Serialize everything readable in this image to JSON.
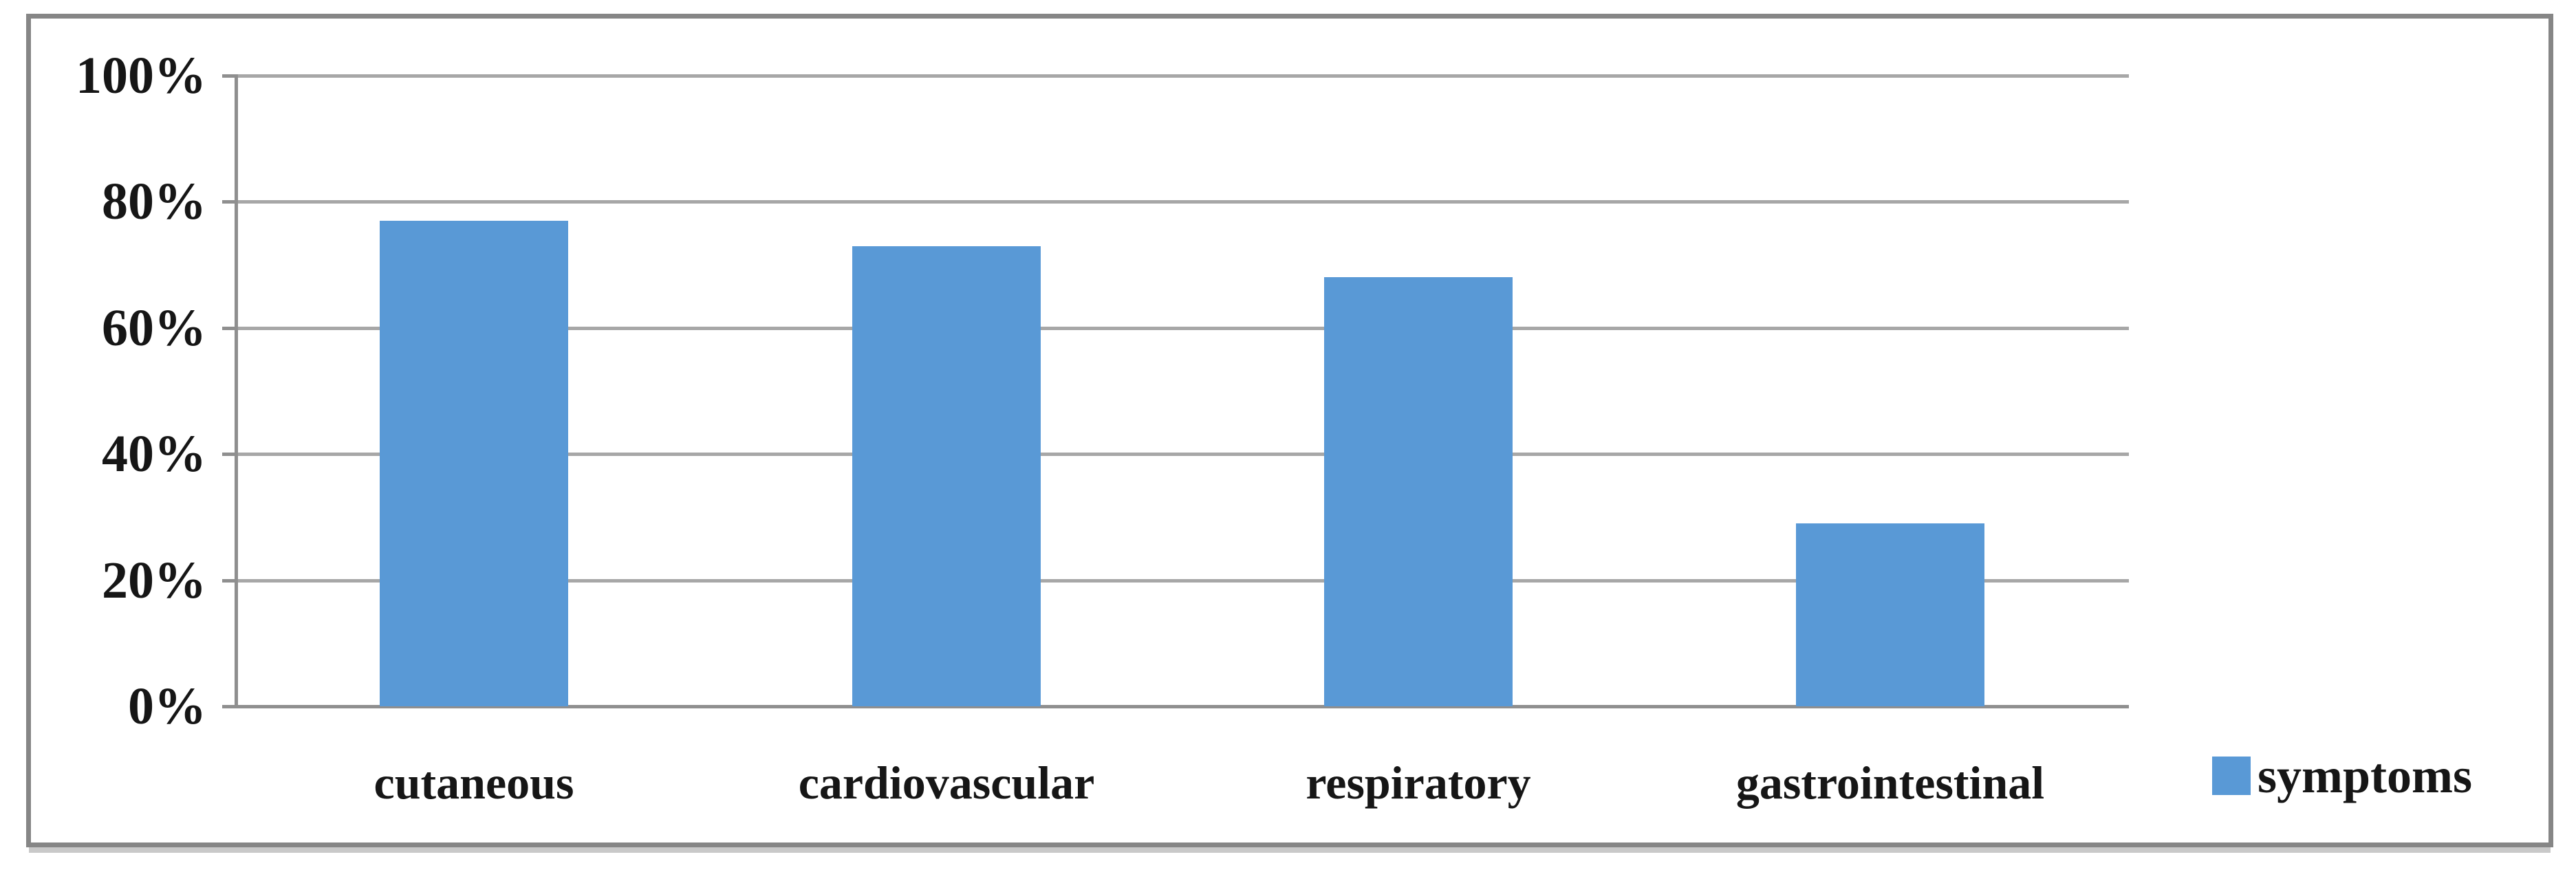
{
  "chart_data": {
    "type": "bar",
    "categories": [
      "cutaneous",
      "cardiovascular",
      "respiratory",
      "gastrointestinal"
    ],
    "series": [
      {
        "name": "symptoms",
        "values": [
          77,
          73,
          68,
          29
        ]
      }
    ],
    "title": "",
    "xlabel": "",
    "ylabel": "",
    "ylim": [
      0,
      100
    ],
    "y_tick_labels_top_to_bottom": [
      "100%",
      "80%",
      "60%",
      "40%",
      "20%",
      "0%"
    ],
    "y_tick_values_top_to_bottom": [
      100,
      80,
      60,
      40,
      20,
      0
    ],
    "grid": "horizontal-only",
    "legend_position": "inside-bottom-right",
    "bar_color": "#5999d6",
    "gridline_color": "#a7a7a7",
    "axis_color": "#8f8f8f",
    "text_color": "#161616"
  }
}
